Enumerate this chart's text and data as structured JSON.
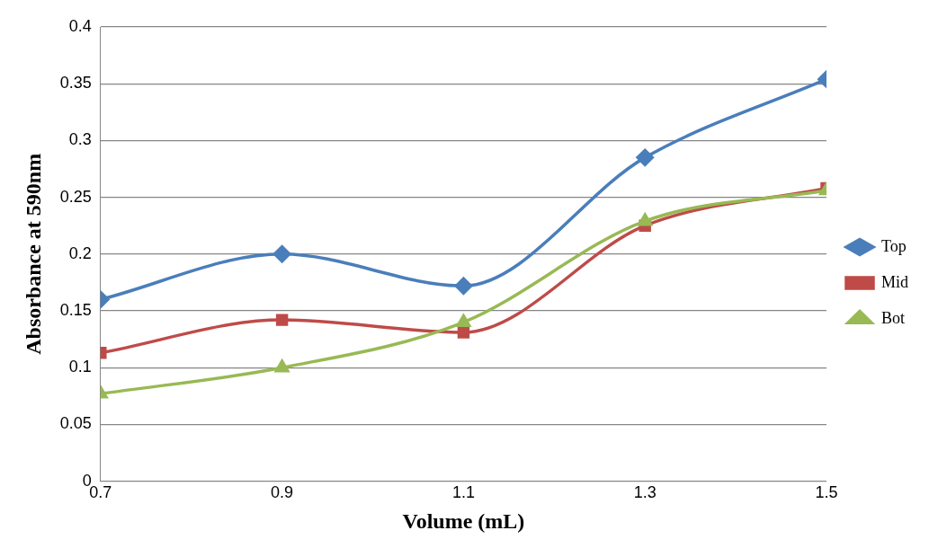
{
  "chart_data": {
    "type": "line",
    "xlabel": "Volume (mL)",
    "ylabel": "Absorbance at 590nm",
    "x": [
      0.7,
      0.9,
      1.1,
      1.3,
      1.5
    ],
    "series": [
      {
        "name": "Top",
        "color": "#4a7ebb",
        "marker": "diamond",
        "values": [
          0.16,
          0.2,
          0.172,
          0.285,
          0.354
        ]
      },
      {
        "name": "Mid",
        "color": "#be4b48",
        "marker": "square",
        "values": [
          0.113,
          0.142,
          0.131,
          0.225,
          0.258
        ]
      },
      {
        "name": "Bot",
        "color": "#98b954",
        "marker": "triangle",
        "values": [
          0.077,
          0.1,
          0.14,
          0.229,
          0.256
        ]
      }
    ],
    "xlim": [
      0.7,
      1.5
    ],
    "xticks": [
      0.7,
      0.9,
      1.1,
      1.3,
      1.5
    ],
    "ylim": [
      0,
      0.4
    ],
    "yticks": [
      0,
      0.05,
      0.1,
      0.15,
      0.2,
      0.25,
      0.3,
      0.35,
      0.4
    ],
    "grid": "y",
    "legend": "right"
  }
}
